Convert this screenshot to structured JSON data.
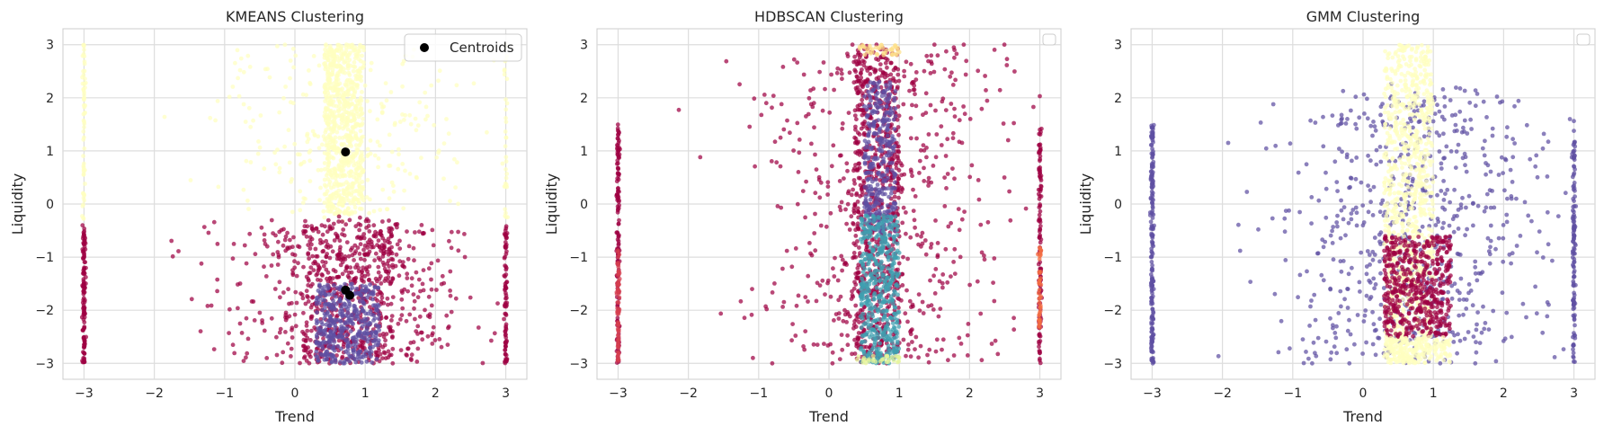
{
  "chart_data": [
    {
      "type": "scatter",
      "title": "KMEANS Clustering",
      "xlabel": "Trend",
      "ylabel": "Liquidity",
      "xlim": [
        -3.3,
        3.3
      ],
      "ylim": [
        -3.3,
        3.3
      ],
      "xticks": [
        "−3",
        "−2",
        "−1",
        "0",
        "1",
        "2",
        "3"
      ],
      "yticks": [
        "−3",
        "−2",
        "−1",
        "0",
        "1",
        "2",
        "3"
      ],
      "grid": true,
      "legend": {
        "placement": "top-right",
        "entries": [
          {
            "label": "Centroids",
            "color": "#000000"
          }
        ]
      },
      "colors": [
        "#9e0142",
        "#5e4fa2",
        "#ffffbf",
        "#f46d43"
      ],
      "centroids": [
        {
          "x": 0.72,
          "y": 0.98
        },
        {
          "x": 0.72,
          "y": -1.62
        },
        {
          "x": 0.78,
          "y": -1.72
        }
      ]
    },
    {
      "type": "scatter",
      "title": "HDBSCAN Clustering",
      "xlabel": "Trend",
      "ylabel": "Liquidity",
      "xlim": [
        -3.3,
        3.3
      ],
      "ylim": [
        -3.3,
        3.3
      ],
      "xticks": [
        "−3",
        "−2",
        "−1",
        "0",
        "1",
        "2",
        "3"
      ],
      "yticks": [
        "−3",
        "−2",
        "−1",
        "0",
        "1",
        "2",
        "3"
      ],
      "grid": true,
      "legend": {
        "placement": "top-right",
        "entries": []
      },
      "colors": [
        "#9e0142",
        "#5e4fa2",
        "#3288bd",
        "#66c2a5",
        "#e6f598",
        "#fee08b",
        "#f46d43",
        "#d53e4f"
      ]
    },
    {
      "type": "scatter",
      "title": "GMM Clustering",
      "xlabel": "Trend",
      "ylabel": "Liquidity",
      "xlim": [
        -3.3,
        3.3
      ],
      "ylim": [
        -3.3,
        3.3
      ],
      "xticks": [
        "−3",
        "−2",
        "−1",
        "0",
        "1",
        "2",
        "3"
      ],
      "yticks": [
        "−3",
        "−2",
        "−1",
        "0",
        "1",
        "2",
        "3"
      ],
      "grid": true,
      "legend": {
        "placement": "top-right",
        "entries": []
      },
      "colors": [
        "#5e4fa2",
        "#ffffbf",
        "#9e0142"
      ]
    }
  ]
}
